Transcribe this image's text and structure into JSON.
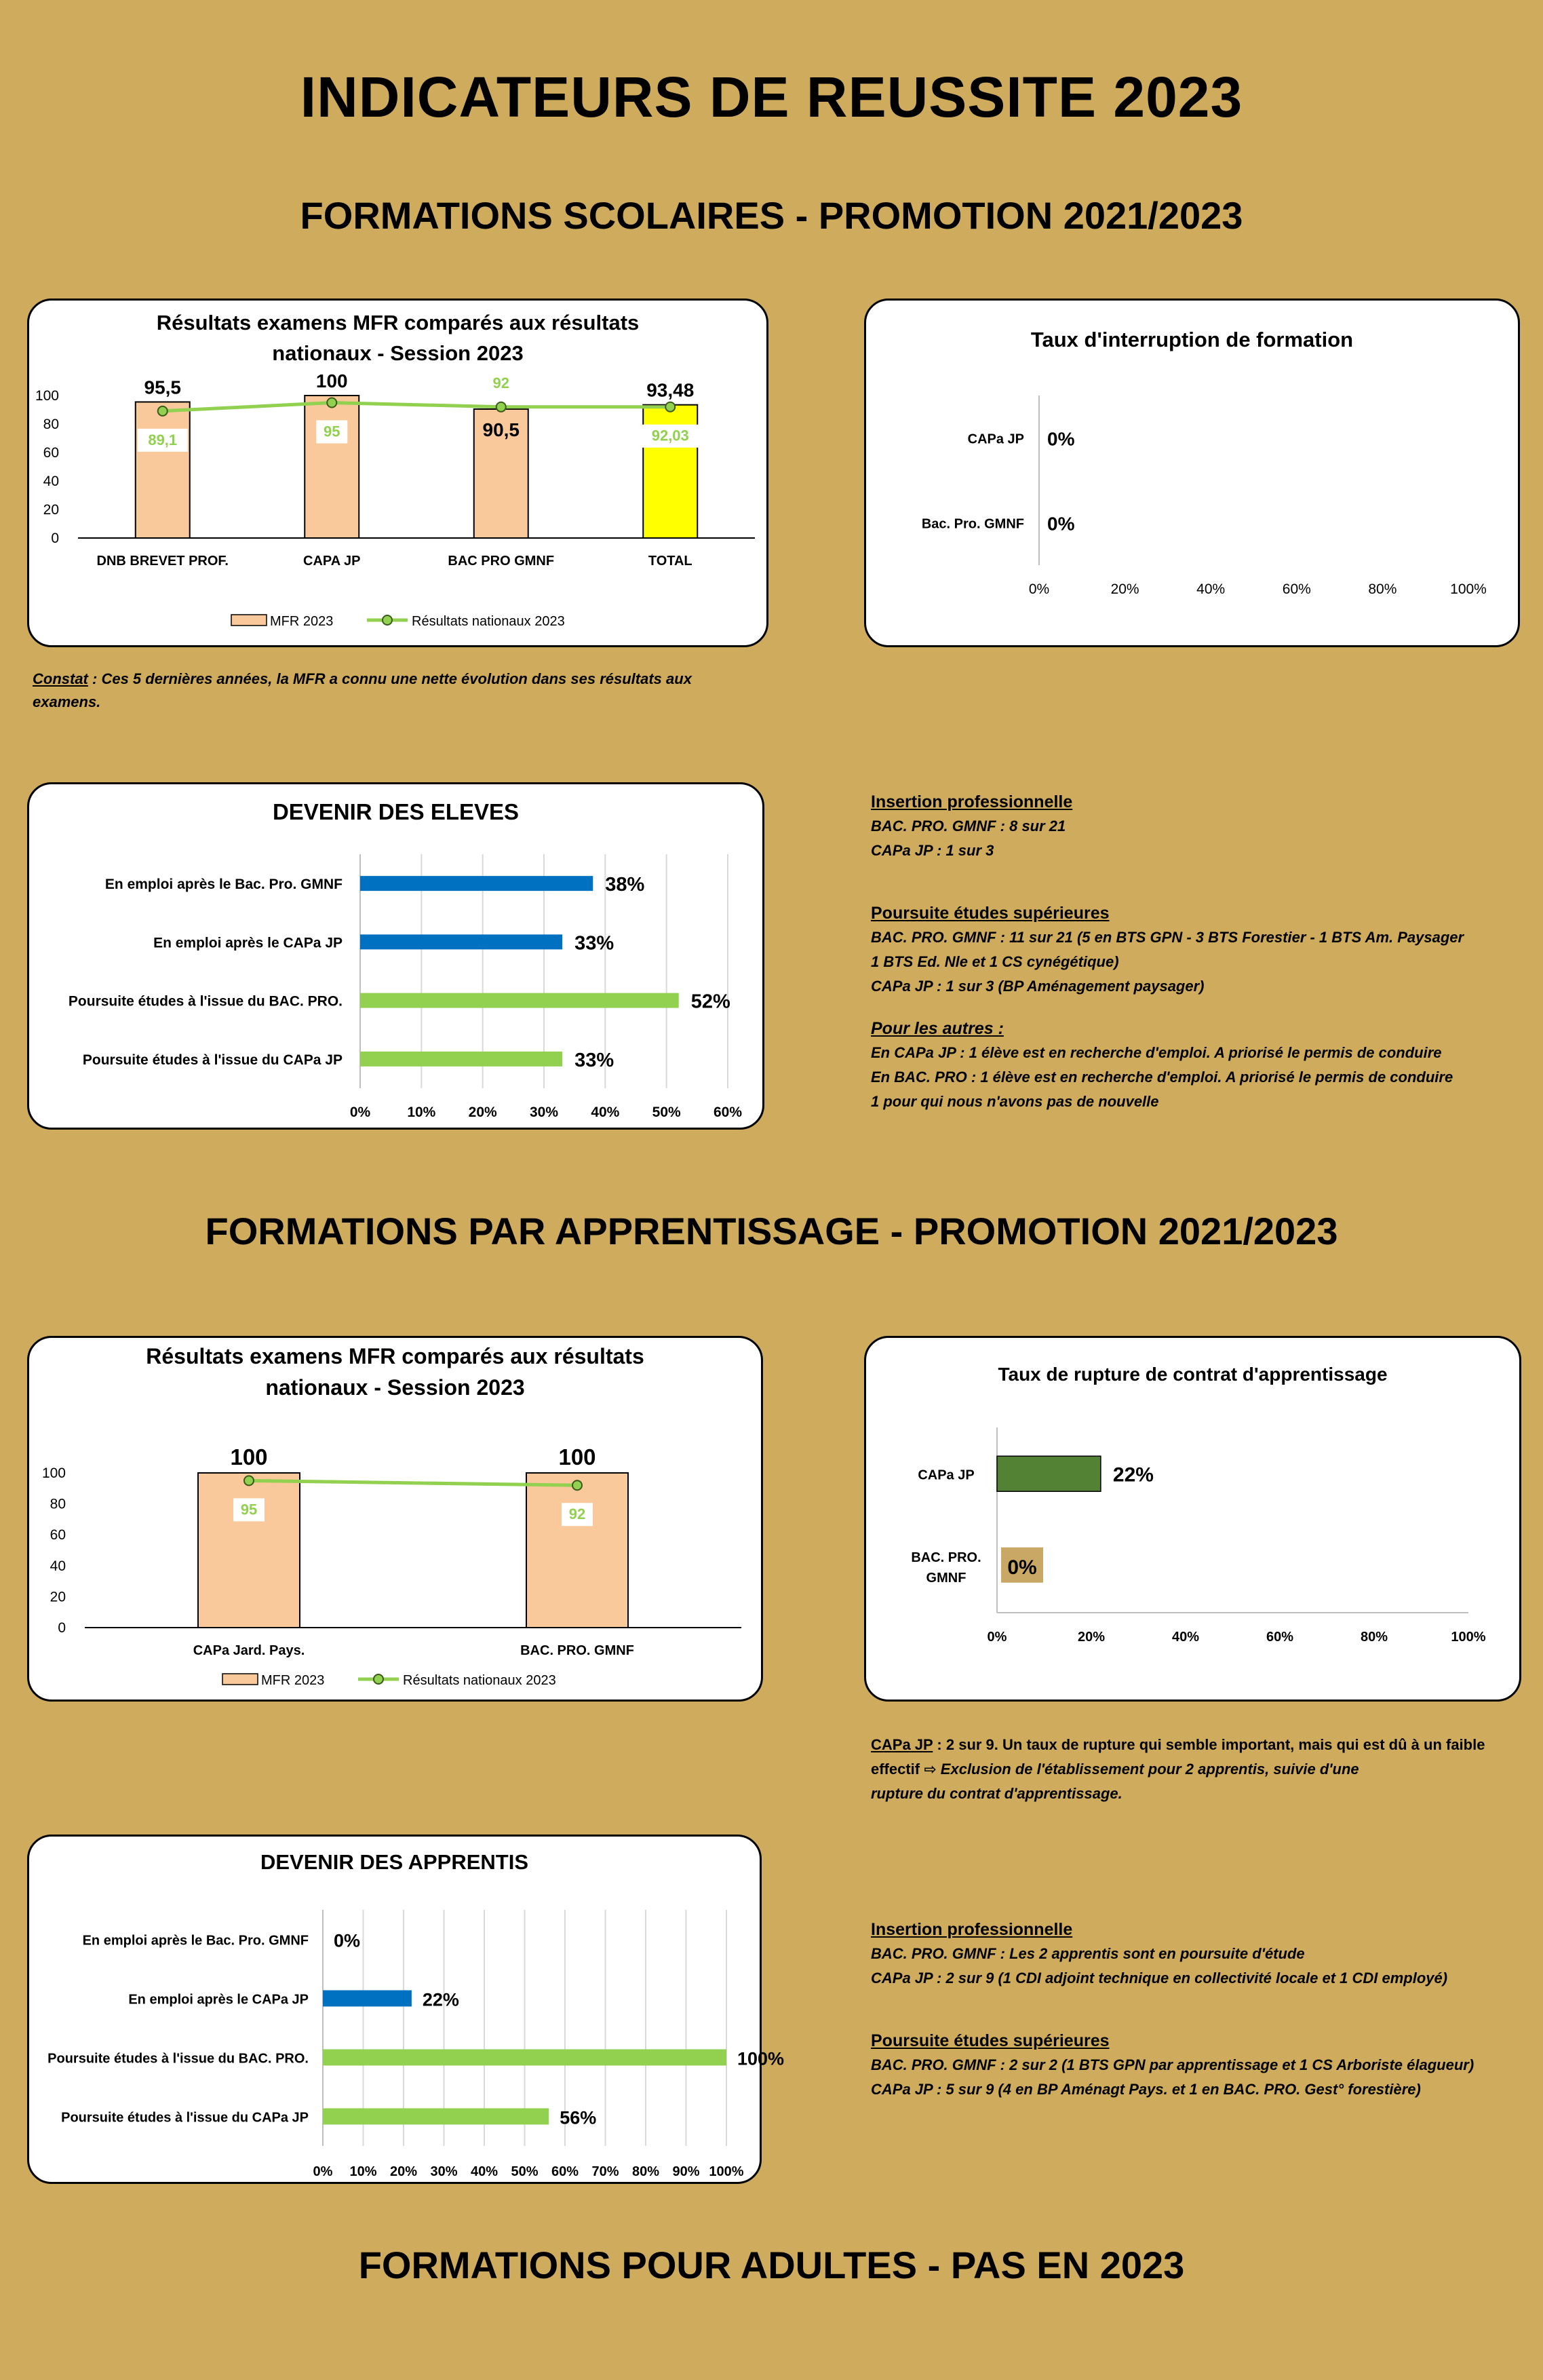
{
  "title": "INDICATEURS DE REUSSITE 2023",
  "section_scolaire": "FORMATIONS SCOLAIRES - PROMOTION 2021/2023",
  "section_apprentissage": "FORMATIONS PAR APPRENTISSAGE - PROMOTION 2021/2023",
  "section_adultes": "FORMATIONS POUR ADULTES - PAS EN 2023",
  "constat": {
    "label": "Constat",
    "text": " : Ces 5 dernières années, la MFR a connu une nette évolution dans ses résultats aux examens."
  },
  "scolaire_notes": {
    "insertion_title": "Insertion professionnelle",
    "insertion_lines": [
      "BAC. PRO. GMNF : 8 sur 21",
      "CAPa JP : 1 sur 3"
    ],
    "poursuite_title": "Poursuite études supérieures",
    "poursuite_lines": [
      "BAC. PRO. GMNF : 11 sur 21 (5 en BTS GPN - 3 BTS Forestier - 1 BTS Am. Paysager",
      "1 BTS Ed. Nle et 1 CS cynégétique)",
      "CAPa JP : 1 sur 3 (BP Aménagement paysager)"
    ],
    "autres_title": "Pour les autres :",
    "autres_lines": [
      "En CAPa JP : 1 élève est en recherche d'emploi. A priorisé le permis de conduire",
      "En BAC. PRO : 1 élève est en recherche d'emploi. A priorisé le permis de conduire",
      "1 pour qui nous n'avons pas de nouvelle"
    ]
  },
  "rupture_note": {
    "label": "CAPa JP",
    "line1": " : 2 sur 9. Un taux de rupture qui semble important, mais qui est dû à un faible",
    "line2_a": "effectif ",
    "arrow": "⇨",
    "line2_b": " Exclusion de l'établissement pour 2 apprentis, suivie d'une",
    "line3": "rupture du contrat d'apprentissage."
  },
  "apprentis_notes": {
    "insertion_title": "Insertion professionnelle",
    "insertion_lines": [
      "BAC. PRO. GMNF : Les 2 apprentis sont en poursuite d'étude",
      "CAPa JP : 2 sur 9 (1 CDI adjoint technique en collectivité locale et 1 CDI employé)"
    ],
    "poursuite_title": "Poursuite études supérieures",
    "poursuite_lines": [
      "BAC. PRO. GMNF : 2 sur 2 (1 BTS GPN par apprentissage et 1 CS Arboriste élagueur)",
      "CAPa JP : 5 sur 9 (4 en BP Aménagt Pays. et 1 en BAC. PRO. Gest° forestière)"
    ]
  },
  "chart_data": [
    {
      "id": "exam_scolaire",
      "type": "bar",
      "title_lines": [
        "Résultats examens MFR comparés aux résultats",
        "nationaux - Session 2023"
      ],
      "categories": [
        "DNB BREVET  PROF.",
        "CAPA JP",
        "BAC PRO GMNF",
        "TOTAL"
      ],
      "series": [
        {
          "name": "MFR 2023",
          "values": [
            95.5,
            100,
            90.5,
            93.48
          ],
          "labels": [
            "95,5",
            "100",
            "90,5",
            "93,48"
          ],
          "color": "#f9c89b",
          "highlight": "#ffff00"
        },
        {
          "name": "Résultats nationaux 2023",
          "type": "line",
          "values": [
            89.1,
            95,
            92,
            92.03
          ],
          "labels": [
            "89,1",
            "95",
            "92",
            "92,03"
          ],
          "color": "#92d050"
        }
      ],
      "ylim": [
        0,
        100
      ],
      "yticks": [
        "0",
        "20",
        "40",
        "60",
        "80",
        "100"
      ],
      "legend": "bottom"
    },
    {
      "id": "interruption",
      "type": "bar",
      "orientation": "horizontal",
      "title": "Taux d'interruption de formation",
      "categories": [
        "CAPa JP",
        "Bac. Pro. GMNF"
      ],
      "values": [
        0,
        0
      ],
      "labels": [
        "0%",
        "0%"
      ],
      "xlim": [
        0,
        100
      ],
      "xticks": [
        "0%",
        "20%",
        "40%",
        "60%",
        "80%",
        "100%"
      ]
    },
    {
      "id": "devenir_eleves",
      "type": "bar",
      "orientation": "horizontal",
      "title": "DEVENIR DES ELEVES",
      "categories": [
        "En emploi après le Bac. Pro. GMNF",
        "En emploi après le CAPa JP",
        "Poursuite études à l'issue du BAC. PRO.",
        "Poursuite études à l'issue du CAPa JP"
      ],
      "values": [
        38,
        33,
        52,
        33
      ],
      "labels": [
        "38%",
        "33%",
        "52%",
        "33%"
      ],
      "colors": [
        "#0070c0",
        "#0070c0",
        "#92d050",
        "#92d050"
      ],
      "xlim": [
        0,
        60
      ],
      "xticks": [
        "0%",
        "10%",
        "20%",
        "30%",
        "40%",
        "50%",
        "60%"
      ],
      "grid": true
    },
    {
      "id": "exam_apprentis",
      "type": "bar",
      "title_lines": [
        "Résultats examens MFR comparés aux résultats",
        "nationaux - Session 2023"
      ],
      "categories": [
        "CAPa Jard. Pays.",
        "BAC. PRO. GMNF"
      ],
      "series": [
        {
          "name": "MFR 2023",
          "values": [
            100,
            100
          ],
          "labels": [
            "100",
            "100"
          ],
          "color": "#f9c89b"
        },
        {
          "name": "Résultats nationaux 2023",
          "type": "line",
          "values": [
            95,
            92
          ],
          "labels": [
            "95",
            "92"
          ],
          "color": "#92d050"
        }
      ],
      "ylim": [
        0,
        100
      ],
      "yticks": [
        "0",
        "20",
        "40",
        "60",
        "80",
        "100"
      ],
      "legend": "bottom"
    },
    {
      "id": "rupture",
      "type": "bar",
      "orientation": "horizontal",
      "title": "Taux de rupture de contrat d'apprentissage",
      "categories": [
        "CAPa JP",
        "BAC. PRO. GMNF"
      ],
      "values": [
        22,
        0
      ],
      "labels": [
        "22%",
        "0%"
      ],
      "colors": [
        "#548235",
        "#c9a866"
      ],
      "xlim": [
        0,
        100
      ],
      "xticks": [
        "0%",
        "20%",
        "40%",
        "60%",
        "80%",
        "100%"
      ]
    },
    {
      "id": "devenir_apprentis",
      "type": "bar",
      "orientation": "horizontal",
      "title": "DEVENIR DES APPRENTIS",
      "categories": [
        "En emploi après le Bac. Pro. GMNF",
        "En emploi après le CAPa JP",
        "Poursuite études à l'issue du BAC. PRO.",
        "Poursuite études à l'issue du CAPa JP"
      ],
      "values": [
        0,
        22,
        100,
        56
      ],
      "labels": [
        "0%",
        "22%",
        "100%",
        "56%"
      ],
      "colors": [
        "#0070c0",
        "#0070c0",
        "#92d050",
        "#92d050"
      ],
      "xlim": [
        0,
        100
      ],
      "xticks": [
        "0%",
        "10%",
        "20%",
        "30%",
        "40%",
        "50%",
        "60%",
        "70%",
        "80%",
        "90%",
        "100%"
      ],
      "grid": true
    }
  ]
}
